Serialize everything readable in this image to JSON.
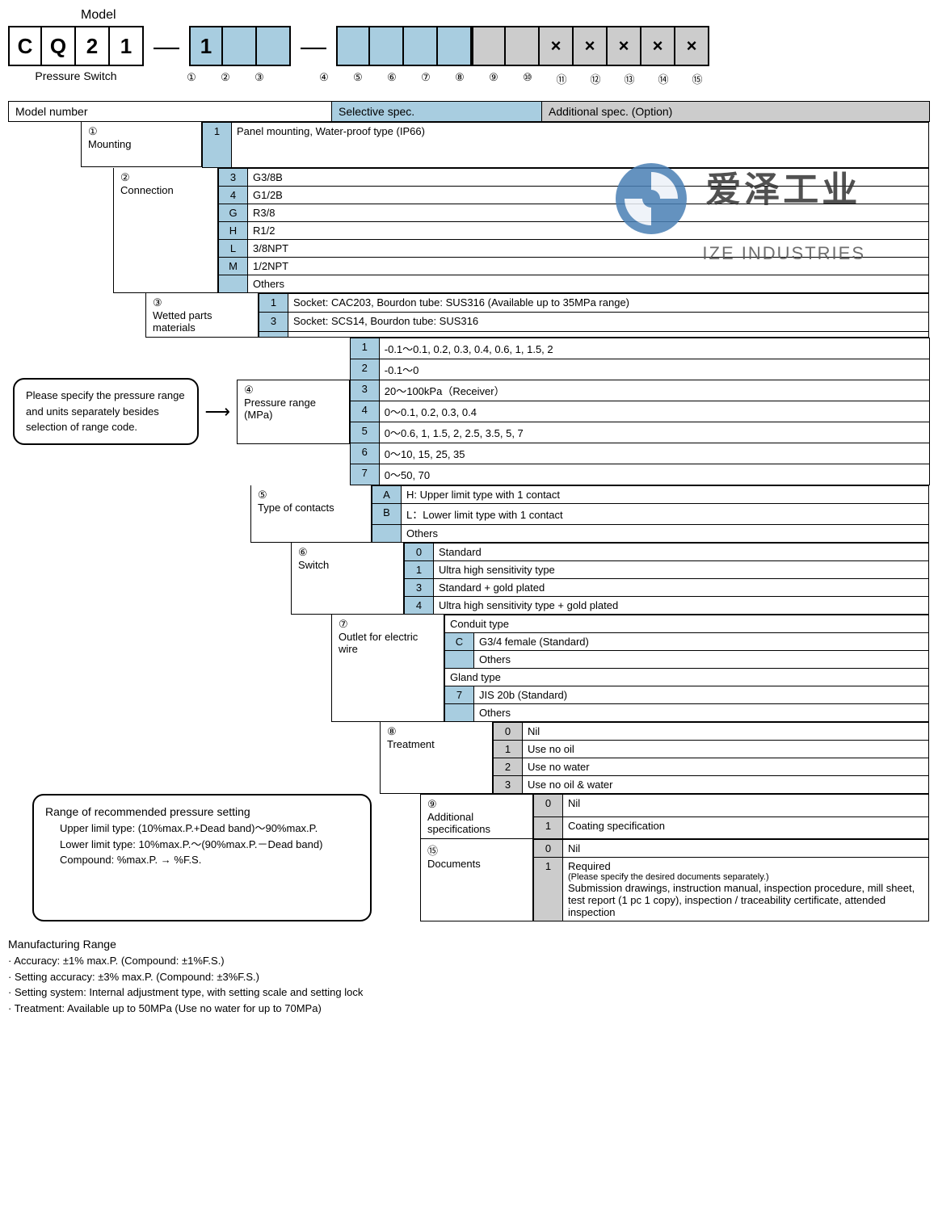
{
  "header": {
    "model_label": "Model",
    "pressure_switch_label": "Pressure Switch",
    "model_chars": [
      "C",
      "Q",
      "2",
      "1"
    ],
    "blue1": [
      "1",
      "",
      ""
    ],
    "blue2": [
      "",
      "",
      "",
      ""
    ],
    "grey": [
      "",
      "",
      "×",
      "×",
      "×",
      "×",
      "×"
    ],
    "additional_x_start": 10,
    "circled": [
      "①",
      "②",
      "③",
      "④",
      "⑤",
      "⑥",
      "⑦",
      "⑧",
      "⑨",
      "⑩",
      "⑪",
      "⑫",
      "⑬",
      "⑭",
      "⑮"
    ]
  },
  "bar": {
    "model_number": "Model number",
    "selective": "Selective spec.",
    "additional": "Additional spec. (Option)"
  },
  "sections": {
    "mounting": {
      "num": "①",
      "label": "Mounting",
      "rows": [
        [
          "1",
          "Panel mounting, Water-proof type (IP66)"
        ]
      ]
    },
    "connection": {
      "num": "②",
      "label": "Connection",
      "rows": [
        [
          "3",
          "G3/8B"
        ],
        [
          "4",
          "G1/2B"
        ],
        [
          "G",
          "R3/8"
        ],
        [
          "H",
          "R1/2"
        ],
        [
          "L",
          "3/8NPT"
        ],
        [
          "M",
          "1/2NPT"
        ],
        [
          "",
          "Others"
        ]
      ]
    },
    "wetted": {
      "num": "③",
      "label": "Wetted parts materials",
      "rows": [
        [
          "1",
          "Socket: CAC203, Bourdon tube: SUS316 (Available up to 35MPa range)"
        ],
        [
          "3",
          "Socket: SCS14, Bourdon tube: SUS316"
        ],
        [
          "",
          ""
        ]
      ]
    },
    "pressure": {
      "num": "④",
      "label": "Pressure range (MPa)",
      "rows": [
        [
          "1",
          "-0.1～0.1, 0.2, 0.3, 0.4, 0.6, 1, 1.5, 2"
        ],
        [
          "2",
          "-0.1～0"
        ],
        [
          "3",
          "20～100kPa（Receiver）"
        ],
        [
          "4",
          "0～0.1, 0.2, 0.3, 0.4"
        ],
        [
          "5",
          "0～0.6, 1, 1.5, 2, 2.5, 3.5, 5, 7"
        ],
        [
          "6",
          "0～10, 15, 25, 35"
        ],
        [
          "7",
          "0～50, 70"
        ]
      ]
    },
    "contacts": {
      "num": "⑤",
      "label": "Type of contacts",
      "rows": [
        [
          "A",
          "H: Upper limit type with 1 contact"
        ],
        [
          "B",
          "L：Lower limit type with 1 contact"
        ],
        [
          "",
          "Others"
        ]
      ]
    },
    "switch": {
      "num": "⑥",
      "label": "Switch",
      "rows": [
        [
          "0",
          "Standard"
        ],
        [
          "1",
          "Ultra high sensitivity type"
        ],
        [
          "3",
          "Standard + gold plated"
        ],
        [
          "4",
          "Ultra high sensitivity type + gold plated"
        ]
      ]
    },
    "outlet": {
      "num": "⑦",
      "label": "Outlet for electric wire",
      "h1": "Conduit type",
      "rows1": [
        [
          "C",
          "G3/4 female (Standard)"
        ],
        [
          "",
          "Others"
        ]
      ],
      "h2": "Gland type",
      "rows2": [
        [
          "7",
          "JIS 20b (Standard)"
        ],
        [
          "",
          "Others"
        ]
      ]
    },
    "treatment": {
      "num": "⑧",
      "label": "Treatment",
      "rows": [
        [
          "0",
          "Nil"
        ],
        [
          "1",
          "Use no oil"
        ],
        [
          "2",
          "Use no water"
        ],
        [
          "3",
          "Use no oil & water"
        ]
      ]
    },
    "addspec": {
      "num": "⑨",
      "label": "Additional specifications",
      "rows": [
        [
          "0",
          "Nil"
        ],
        [
          "1",
          "Coating specification"
        ]
      ]
    },
    "docs": {
      "num": "⑮",
      "label": "Documents",
      "rows": [
        [
          "0",
          "Nil"
        ],
        [
          "1",
          "Required"
        ]
      ],
      "note": "(Please specify the desired documents separately.)",
      "detail": "Submission drawings, instruction manual, inspection procedure, mill sheet, test report (1 pc 1 copy), inspection / traceability certificate, attended inspection"
    }
  },
  "notes": {
    "pressure_note": "Please specify the pressure range and units separately besides selection of range code.",
    "range_title": "Range of recommended pressure setting",
    "range_l1": "Upper limil type: (10%max.P.+Dead band)～90%max.P.",
    "range_l2": "Lower limit type: 10%max.P.～(90%max.P.－Dead band)",
    "range_l3": "Compound:  %max.P. → %F.S."
  },
  "footer": {
    "title": "Manufacturing Range",
    "l1": "· Accuracy: ±1% max.P. (Compound: ±1%F.S.)",
    "l2": "· Setting accuracy: ±3% max.P. (Compound: ±3%F.S.)",
    "l3": "· Setting system: Internal adjustment type, with setting scale and setting lock",
    "l4": "· Treatment: Available up to 50MPa (Use no water for up to 70MPa)"
  },
  "watermark": {
    "cn": "爱泽工业",
    "en": "IZE INDUSTRIES"
  }
}
